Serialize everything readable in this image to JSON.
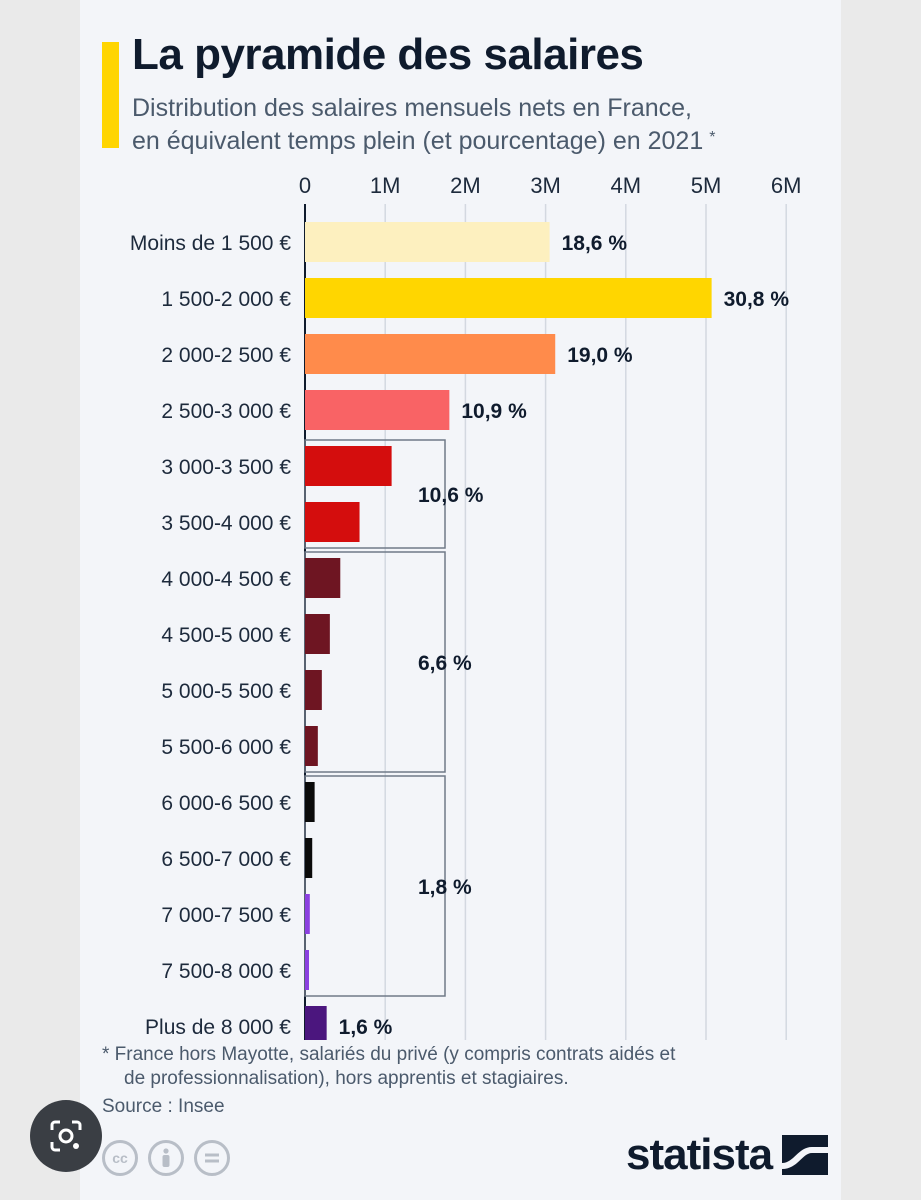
{
  "header": {
    "title": "La pyramide des salaires",
    "subtitle_line1": "Distribution des salaires mensuels nets en France,",
    "subtitle_line2": "en équivalent temps plein (et pourcentage) en 2021",
    "asterisk": "*"
  },
  "footer": {
    "note_line1": "* France hors Mayotte, salariés du privé (y compris contrats aidés et",
    "note_line2": "de professionnalisation), hors apprentis et stagiaires.",
    "source": "Source : Insee",
    "brand": "statista",
    "license_icons": [
      "cc-icon",
      "by-icon",
      "nd-icon"
    ]
  },
  "chart_data": {
    "type": "bar",
    "orientation": "horizontal",
    "xticks": [
      "0",
      "1M",
      "2M",
      "3M",
      "4M",
      "5M",
      "6M"
    ],
    "xlim": [
      0,
      6000000
    ],
    "grid": true,
    "categories": [
      "Moins de 1 500 €",
      "1 500-2 000 €",
      "2 000-2 500 €",
      "2 500-3 000 €",
      "3 000-3 500 €",
      "3 500-4 000 €",
      "4 000-4 500 €",
      "4 500-5 000 €",
      "5 000-5 500 €",
      "5 500-6 000 €",
      "6 000-6 500 €",
      "6 500-7 000 €",
      "7 000-7 500 €",
      "7 500-8 000 €",
      "Plus de 8 000 €"
    ],
    "values": [
      3050000,
      5070000,
      3120000,
      1800000,
      1080000,
      680000,
      440000,
      310000,
      210000,
      160000,
      120000,
      90000,
      60000,
      50000,
      270000
    ],
    "colors": [
      "#fdf0bf",
      "#ffd600",
      "#ff8b4b",
      "#f96365",
      "#d40d0d",
      "#d40d0d",
      "#6e1522",
      "#6e1522",
      "#6e1522",
      "#6e1522",
      "#0b0b0b",
      "#0b0b0b",
      "#8b40e0",
      "#8b40e0",
      "#4b167e"
    ],
    "bar_labels": [
      {
        "index": 0,
        "text": "18,6 %"
      },
      {
        "index": 1,
        "text": "30,8 %"
      },
      {
        "index": 2,
        "text": "19,0 %"
      },
      {
        "index": 3,
        "text": "10,9 %"
      },
      {
        "index": 14,
        "text": "1,6 %"
      }
    ],
    "groups": [
      {
        "start": 4,
        "end": 5,
        "label": "10,6 %"
      },
      {
        "start": 6,
        "end": 9,
        "label": "6,6 %"
      },
      {
        "start": 10,
        "end": 13,
        "label": "1,8 %"
      }
    ]
  }
}
